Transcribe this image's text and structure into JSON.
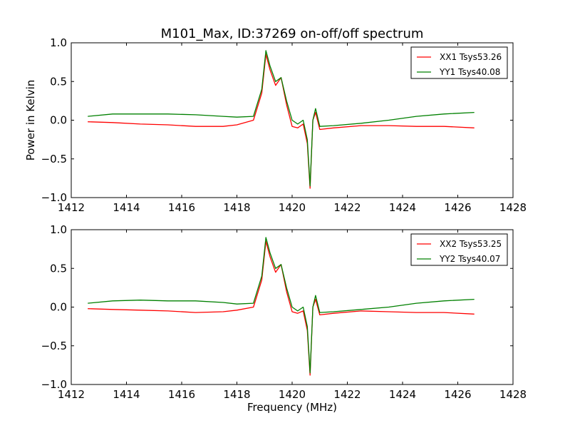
{
  "figure_title": "M101_Max, ID:37269 on-off/off spectrum",
  "colors": {
    "xx": "#ff0000",
    "yy": "#008000",
    "frame": "#000000",
    "background": "#ffffff"
  },
  "chart_data": [
    {
      "type": "line",
      "title": "M101_Max, ID:37269 on-off/off spectrum",
      "xlabel": "",
      "ylabel": "Power in Kelvin",
      "xlim": [
        1412,
        1428
      ],
      "ylim": [
        -1.0,
        1.0
      ],
      "xticks": [
        "1412",
        "1414",
        "1416",
        "1418",
        "1420",
        "1422",
        "1424",
        "1426",
        "1428"
      ],
      "yticks": [
        "1.0",
        "0.5",
        "0.0",
        "−0.5",
        "−1.0"
      ],
      "grid": false,
      "legend_position": "top-right",
      "series": [
        {
          "name": "XX1 Tsys53.26",
          "color": "#ff0000",
          "x": [
            1412.6,
            1413.5,
            1414.5,
            1415.5,
            1416.5,
            1417.5,
            1418.0,
            1418.6,
            1418.9,
            1419.05,
            1419.2,
            1419.4,
            1419.6,
            1419.8,
            1420.0,
            1420.2,
            1420.4,
            1420.55,
            1420.65,
            1420.75,
            1420.85,
            1421.0,
            1421.5,
            1422.5,
            1423.5,
            1424.5,
            1425.5,
            1426.6
          ],
          "y": [
            -0.02,
            -0.03,
            -0.05,
            -0.06,
            -0.08,
            -0.08,
            -0.06,
            0.0,
            0.35,
            0.85,
            0.65,
            0.45,
            0.55,
            0.2,
            -0.08,
            -0.1,
            -0.05,
            -0.3,
            -0.88,
            0.0,
            0.1,
            -0.12,
            -0.1,
            -0.07,
            -0.07,
            -0.08,
            -0.08,
            -0.1
          ]
        },
        {
          "name": "YY1 Tsys40.08",
          "color": "#008000",
          "x": [
            1412.6,
            1413.5,
            1414.5,
            1415.5,
            1416.5,
            1417.5,
            1418.0,
            1418.6,
            1418.9,
            1419.05,
            1419.2,
            1419.4,
            1419.6,
            1419.8,
            1420.0,
            1420.2,
            1420.4,
            1420.55,
            1420.65,
            1420.75,
            1420.85,
            1421.0,
            1421.5,
            1422.5,
            1423.5,
            1424.5,
            1425.5,
            1426.6
          ],
          "y": [
            0.05,
            0.08,
            0.08,
            0.08,
            0.07,
            0.05,
            0.04,
            0.05,
            0.4,
            0.9,
            0.7,
            0.5,
            0.55,
            0.25,
            0.0,
            -0.05,
            0.0,
            -0.25,
            -0.85,
            0.0,
            0.15,
            -0.08,
            -0.07,
            -0.04,
            0.0,
            0.05,
            0.08,
            0.1
          ]
        }
      ]
    },
    {
      "type": "line",
      "title": "",
      "xlabel": "Frequency (MHz)",
      "ylabel": "",
      "xlim": [
        1412,
        1428
      ],
      "ylim": [
        -1.0,
        1.0
      ],
      "xticks": [
        "1412",
        "1414",
        "1416",
        "1418",
        "1420",
        "1422",
        "1424",
        "1426",
        "1428"
      ],
      "yticks": [
        "1.0",
        "0.5",
        "0.0",
        "−0.5",
        "−1.0"
      ],
      "grid": false,
      "legend_position": "top-right",
      "series": [
        {
          "name": "XX2 Tsys53.25",
          "color": "#ff0000",
          "x": [
            1412.6,
            1413.5,
            1414.5,
            1415.5,
            1416.5,
            1417.5,
            1418.0,
            1418.6,
            1418.9,
            1419.05,
            1419.2,
            1419.4,
            1419.6,
            1419.8,
            1420.0,
            1420.2,
            1420.4,
            1420.55,
            1420.65,
            1420.75,
            1420.85,
            1421.0,
            1421.5,
            1422.5,
            1423.5,
            1424.5,
            1425.5,
            1426.6
          ],
          "y": [
            -0.02,
            -0.03,
            -0.04,
            -0.05,
            -0.07,
            -0.06,
            -0.04,
            0.0,
            0.35,
            0.85,
            0.65,
            0.45,
            0.55,
            0.2,
            -0.06,
            -0.08,
            -0.05,
            -0.3,
            -0.88,
            0.0,
            0.1,
            -0.1,
            -0.08,
            -0.05,
            -0.06,
            -0.07,
            -0.07,
            -0.09
          ]
        },
        {
          "name": "YY2 Tsys40.07",
          "color": "#008000",
          "x": [
            1412.6,
            1413.5,
            1414.5,
            1415.5,
            1416.5,
            1417.5,
            1418.0,
            1418.6,
            1418.9,
            1419.05,
            1419.2,
            1419.4,
            1419.6,
            1419.8,
            1420.0,
            1420.2,
            1420.4,
            1420.55,
            1420.65,
            1420.75,
            1420.85,
            1421.0,
            1421.5,
            1422.5,
            1423.5,
            1424.5,
            1425.5,
            1426.6
          ],
          "y": [
            0.05,
            0.08,
            0.09,
            0.08,
            0.08,
            0.06,
            0.04,
            0.05,
            0.4,
            0.9,
            0.7,
            0.5,
            0.55,
            0.25,
            0.0,
            -0.05,
            0.0,
            -0.25,
            -0.85,
            0.0,
            0.15,
            -0.07,
            -0.06,
            -0.03,
            0.0,
            0.05,
            0.08,
            0.1
          ]
        }
      ]
    }
  ]
}
